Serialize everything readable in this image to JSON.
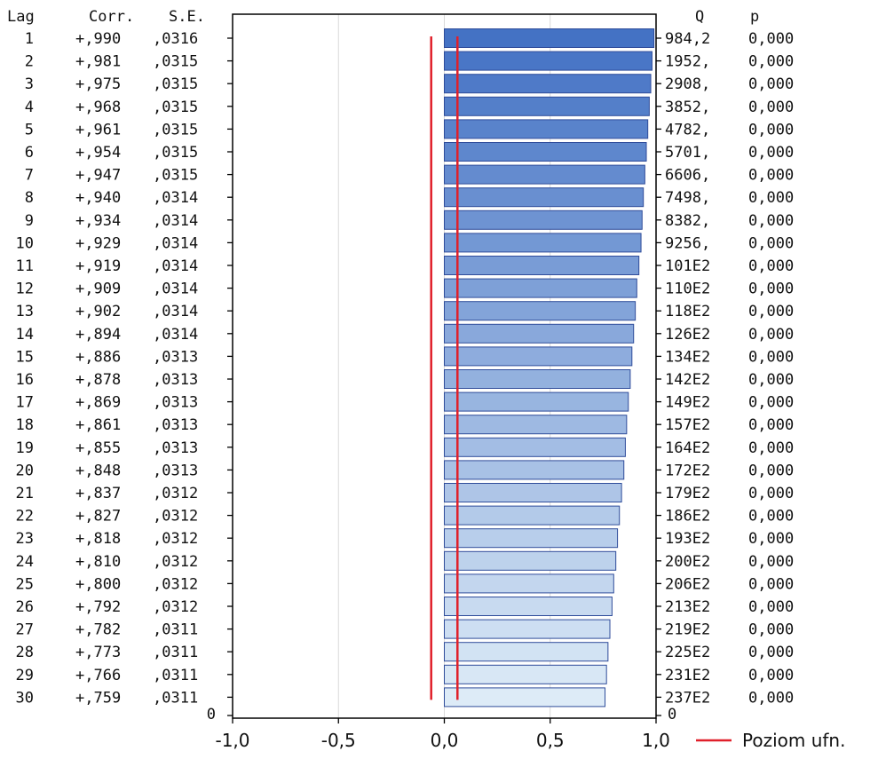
{
  "chart_data": {
    "type": "bar",
    "orientation": "horizontal",
    "columns": {
      "lag": "Lag",
      "corr": "Corr.",
      "se": "S.E.",
      "q": "Q",
      "p": "p"
    },
    "rows": [
      {
        "lag": "1",
        "corr_label": "+,990",
        "se": ",0316",
        "q": "984,2",
        "p": "0,000",
        "value": 0.99
      },
      {
        "lag": "2",
        "corr_label": "+,981",
        "se": ",0315",
        "q": "1952,",
        "p": "0,000",
        "value": 0.981
      },
      {
        "lag": "3",
        "corr_label": "+,975",
        "se": ",0315",
        "q": "2908,",
        "p": "0,000",
        "value": 0.975
      },
      {
        "lag": "4",
        "corr_label": "+,968",
        "se": ",0315",
        "q": "3852,",
        "p": "0,000",
        "value": 0.968
      },
      {
        "lag": "5",
        "corr_label": "+,961",
        "se": ",0315",
        "q": "4782,",
        "p": "0,000",
        "value": 0.961
      },
      {
        "lag": "6",
        "corr_label": "+,954",
        "se": ",0315",
        "q": "5701,",
        "p": "0,000",
        "value": 0.954
      },
      {
        "lag": "7",
        "corr_label": "+,947",
        "se": ",0315",
        "q": "6606,",
        "p": "0,000",
        "value": 0.947
      },
      {
        "lag": "8",
        "corr_label": "+,940",
        "se": ",0314",
        "q": "7498,",
        "p": "0,000",
        "value": 0.94
      },
      {
        "lag": "9",
        "corr_label": "+,934",
        "se": ",0314",
        "q": "8382,",
        "p": "0,000",
        "value": 0.934
      },
      {
        "lag": "10",
        "corr_label": "+,929",
        "se": ",0314",
        "q": "9256,",
        "p": "0,000",
        "value": 0.929
      },
      {
        "lag": "11",
        "corr_label": "+,919",
        "se": ",0314",
        "q": "101E2",
        "p": "0,000",
        "value": 0.919
      },
      {
        "lag": "12",
        "corr_label": "+,909",
        "se": ",0314",
        "q": "110E2",
        "p": "0,000",
        "value": 0.909
      },
      {
        "lag": "13",
        "corr_label": "+,902",
        "se": ",0314",
        "q": "118E2",
        "p": "0,000",
        "value": 0.902
      },
      {
        "lag": "14",
        "corr_label": "+,894",
        "se": ",0314",
        "q": "126E2",
        "p": "0,000",
        "value": 0.894
      },
      {
        "lag": "15",
        "corr_label": "+,886",
        "se": ",0313",
        "q": "134E2",
        "p": "0,000",
        "value": 0.886
      },
      {
        "lag": "16",
        "corr_label": "+,878",
        "se": ",0313",
        "q": "142E2",
        "p": "0,000",
        "value": 0.878
      },
      {
        "lag": "17",
        "corr_label": "+,869",
        "se": ",0313",
        "q": "149E2",
        "p": "0,000",
        "value": 0.869
      },
      {
        "lag": "18",
        "corr_label": "+,861",
        "se": ",0313",
        "q": "157E2",
        "p": "0,000",
        "value": 0.861
      },
      {
        "lag": "19",
        "corr_label": "+,855",
        "se": ",0313",
        "q": "164E2",
        "p": "0,000",
        "value": 0.855
      },
      {
        "lag": "20",
        "corr_label": "+,848",
        "se": ",0313",
        "q": "172E2",
        "p": "0,000",
        "value": 0.848
      },
      {
        "lag": "21",
        "corr_label": "+,837",
        "se": ",0312",
        "q": "179E2",
        "p": "0,000",
        "value": 0.837
      },
      {
        "lag": "22",
        "corr_label": "+,827",
        "se": ",0312",
        "q": "186E2",
        "p": "0,000",
        "value": 0.827
      },
      {
        "lag": "23",
        "corr_label": "+,818",
        "se": ",0312",
        "q": "193E2",
        "p": "0,000",
        "value": 0.818
      },
      {
        "lag": "24",
        "corr_label": "+,810",
        "se": ",0312",
        "q": "200E2",
        "p": "0,000",
        "value": 0.81
      },
      {
        "lag": "25",
        "corr_label": "+,800",
        "se": ",0312",
        "q": "206E2",
        "p": "0,000",
        "value": 0.8
      },
      {
        "lag": "26",
        "corr_label": "+,792",
        "se": ",0312",
        "q": "213E2",
        "p": "0,000",
        "value": 0.792
      },
      {
        "lag": "27",
        "corr_label": "+,782",
        "se": ",0311",
        "q": "219E2",
        "p": "0,000",
        "value": 0.782
      },
      {
        "lag": "28",
        "corr_label": "+,773",
        "se": ",0311",
        "q": "225E2",
        "p": "0,000",
        "value": 0.773
      },
      {
        "lag": "29",
        "corr_label": "+,766",
        "se": ",0311",
        "q": "231E2",
        "p": "0,000",
        "value": 0.766
      },
      {
        "lag": "30",
        "corr_label": "+,759",
        "se": ",0311",
        "q": "237E2",
        "p": "0,000",
        "value": 0.759
      }
    ],
    "x_ticks": [
      "-1,0",
      "-0,5",
      "0,0",
      "0,5",
      "1,0"
    ],
    "x_tick_values": [
      -1.0,
      -0.5,
      0.0,
      0.5,
      1.0
    ],
    "xlim": [
      -1.0,
      1.0
    ],
    "zero_row_label": "0",
    "confidence_limit": 0.062,
    "legend": {
      "label": "Poziom ufn.",
      "position": "bottom-right"
    },
    "grid": true,
    "colors": {
      "bar_dark": "#4472C4",
      "bar_light": "#DDEBF7",
      "bar_stroke": "#2F4C9A",
      "confidence_line": "#E0202A",
      "grid": "#D9D9D9",
      "axis": "#000000"
    }
  }
}
